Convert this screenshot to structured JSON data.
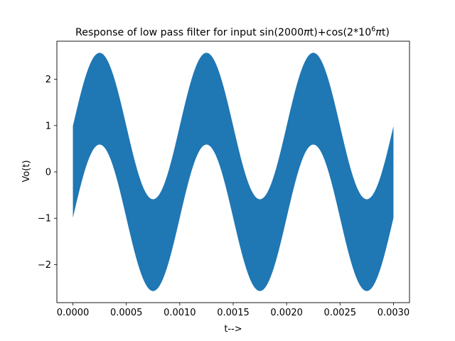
{
  "chart_data": {
    "type": "area",
    "title": "Response of low pass filter for input sin(2000πt)+cos(2*10⁶πt)",
    "title_parts": {
      "main": "Response of low pass filter for input sin(2000",
      "pi1": "π",
      "mid": "t)+cos(2*10",
      "sup": "6",
      "pi2": "π",
      "end": "t)"
    },
    "xlabel": "t-->",
    "ylabel": "Vo(t)",
    "xlim": [
      -0.00015,
      0.00315
    ],
    "ylim": [
      -2.82,
      2.82
    ],
    "x_ticks": [
      0.0,
      0.0005,
      0.001,
      0.0015,
      0.002,
      0.0025,
      0.003
    ],
    "x_tick_labels": [
      "0.0000",
      "0.0005",
      "0.0010",
      "0.0015",
      "0.0020",
      "0.0025",
      "0.0030"
    ],
    "y_ticks": [
      -2,
      -1,
      0,
      1,
      2
    ],
    "y_tick_labels": [
      "−2",
      "−1",
      "0",
      "1",
      "2"
    ],
    "grid": false,
    "fill_color": "#1f77b4",
    "signal": {
      "low_frequency_hz": 1000,
      "low_amplitude": 1.58,
      "carrier_amplitude": 0.99,
      "t_start": 0.0,
      "t_end": 0.003
    },
    "series": [
      {
        "type": "envelope",
        "x": [
          0.0,
          0.0001,
          0.00025,
          0.0004,
          0.0005,
          0.0006,
          0.00075,
          0.0009,
          0.001,
          0.0011,
          0.00125,
          0.0014,
          0.0015,
          0.0016,
          0.00175,
          0.0019,
          0.002,
          0.0021,
          0.00225,
          0.0024,
          0.0025,
          0.0026,
          0.00275,
          0.0029,
          0.003
        ],
        "upper": [
          0.95,
          1.96,
          2.57,
          1.96,
          0.99,
          0.02,
          -0.58,
          0.02,
          0.99,
          1.96,
          2.57,
          1.96,
          0.99,
          0.02,
          -0.58,
          0.02,
          0.99,
          1.96,
          2.57,
          1.96,
          0.99,
          0.02,
          -0.58,
          0.02,
          0.95
        ],
        "lower": [
          -0.92,
          0.0,
          0.59,
          0.0,
          -0.99,
          -1.96,
          -2.57,
          -1.96,
          -0.99,
          0.0,
          0.59,
          0.0,
          -0.99,
          -1.96,
          -2.57,
          -1.96,
          -0.99,
          0.0,
          0.59,
          0.0,
          -0.99,
          -1.96,
          -2.57,
          -1.96,
          -0.92
        ]
      }
    ]
  }
}
